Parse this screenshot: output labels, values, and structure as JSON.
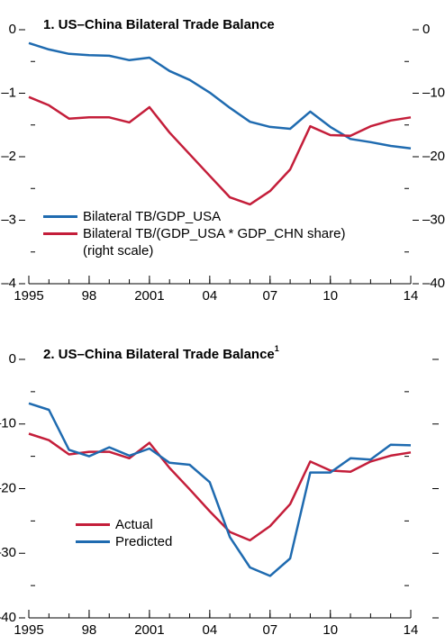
{
  "chart_data": [
    {
      "type": "line",
      "title": "1. US–China Bilateral Trade Balance",
      "x": [
        1995,
        1996,
        1997,
        1998,
        1999,
        2000,
        2001,
        2002,
        2003,
        2004,
        2005,
        2006,
        2007,
        2008,
        2009,
        2010,
        2011,
        2012,
        2013,
        2014
      ],
      "xlim": [
        1995,
        2014
      ],
      "xticks": [
        1995,
        {
          "value": 1998,
          "label": "98"
        },
        2001,
        {
          "value": 2004,
          "label": "04"
        },
        {
          "value": 2007,
          "label": "07"
        },
        {
          "value": 2010,
          "label": "10"
        },
        {
          "value": 2014,
          "label": "14"
        }
      ],
      "ylim": [
        -4,
        0
      ],
      "yticks": [
        0,
        {
          "value": -1,
          "label": "–1"
        },
        {
          "value": -2,
          "label": "–2"
        },
        {
          "value": -3,
          "label": "–3"
        },
        {
          "value": -4,
          "label": "–4"
        }
      ],
      "y2lim": [
        -40,
        0
      ],
      "y2ticks": [
        0,
        {
          "value": -10,
          "label": "–10"
        },
        {
          "value": -20,
          "label": "–20"
        },
        {
          "value": -30,
          "label": "–30"
        },
        {
          "value": -40,
          "label": "–40"
        }
      ],
      "series": [
        {
          "name": "Bilateral TB/GDP_USA",
          "color": "#1f6bb0",
          "axis": "y",
          "values": [
            -0.21,
            -0.31,
            -0.38,
            -0.4,
            -0.41,
            -0.48,
            -0.44,
            -0.65,
            -0.79,
            -0.99,
            -1.23,
            -1.45,
            -1.53,
            -1.56,
            -1.29,
            -1.53,
            -1.72,
            -1.77,
            -1.83,
            -1.87
          ]
        },
        {
          "name": "Bilateral TB/(GDP_USA * GDP_CHN share) (right scale)",
          "color": "#c41e3a",
          "axis": "y2",
          "values": [
            -10.6,
            -11.9,
            -14.0,
            -13.8,
            -13.8,
            -14.6,
            -12.2,
            -16.2,
            -19.6,
            -23.0,
            -26.4,
            -27.5,
            -25.4,
            -22.0,
            -15.2,
            -16.6,
            -16.7,
            -15.2,
            -14.3,
            -13.8
          ]
        }
      ]
    },
    {
      "type": "line",
      "title": "2. US–China Bilateral Trade Balance",
      "title_footnote": "1",
      "x": [
        1995,
        1996,
        1997,
        1998,
        1999,
        2000,
        2001,
        2002,
        2003,
        2004,
        2005,
        2006,
        2007,
        2008,
        2009,
        2010,
        2011,
        2012,
        2013,
        2014
      ],
      "xlim": [
        1995,
        2014
      ],
      "xticks": [
        1995,
        {
          "value": 1998,
          "label": "98"
        },
        2001,
        {
          "value": 2004,
          "label": "04"
        },
        {
          "value": 2007,
          "label": "07"
        },
        {
          "value": 2010,
          "label": "10"
        },
        {
          "value": 2014,
          "label": "14"
        }
      ],
      "ylim": [
        -40,
        0
      ],
      "yticks": [
        0,
        {
          "value": -10,
          "label": "–10"
        },
        {
          "value": -20,
          "label": "–20"
        },
        {
          "value": -30,
          "label": "–30"
        },
        {
          "value": -40,
          "label": "–40"
        }
      ],
      "series": [
        {
          "name": "Actual",
          "color": "#c41e3a",
          "axis": "y",
          "values": [
            -11.5,
            -12.5,
            -14.7,
            -14.3,
            -14.3,
            -15.3,
            -12.9,
            -16.8,
            -20.1,
            -23.5,
            -26.7,
            -28.0,
            -25.8,
            -22.4,
            -15.8,
            -17.2,
            -17.4,
            -15.8,
            -14.9,
            -14.4
          ]
        },
        {
          "name": "Predicted",
          "color": "#1f6bb0",
          "axis": "y",
          "values": [
            -6.8,
            -7.8,
            -14.0,
            -15.0,
            -13.6,
            -14.9,
            -13.8,
            -16.0,
            -16.3,
            -19.0,
            -27.5,
            -32.2,
            -33.5,
            -30.8,
            -17.5,
            -17.5,
            -15.3,
            -15.5,
            -13.2,
            -13.3
          ]
        }
      ]
    }
  ]
}
